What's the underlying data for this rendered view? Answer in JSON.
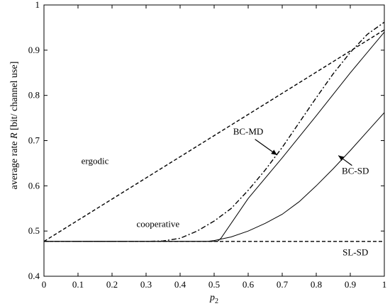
{
  "chart_data": {
    "type": "line",
    "xlabel_var": "p",
    "xlabel_sub": "2",
    "ylabel_prefix": "average rate ",
    "ylabel_var": "R",
    "ylabel_suffix": " [bit/ channel use]",
    "xlim": [
      0,
      1
    ],
    "ylim": [
      0.4,
      1
    ],
    "xticks": [
      0,
      0.1,
      0.2,
      0.3,
      0.4,
      0.5,
      0.6,
      0.7,
      0.8,
      0.9,
      1
    ],
    "xtick_labels": [
      "0",
      "0.1",
      "0.2",
      "0.3",
      "0.4",
      "0.5",
      "0.6",
      "0.7",
      "0.8",
      "0.9",
      "1"
    ],
    "yticks": [
      0.4,
      0.5,
      0.6,
      0.7,
      0.8,
      0.9,
      1
    ],
    "ytick_labels": [
      "0.4",
      "0.5",
      "0.6",
      "0.7",
      "0.8",
      "0.9",
      "1"
    ],
    "grid": false,
    "series": [
      {
        "name": "ergodic",
        "style": "dashed",
        "x": [
          0,
          1
        ],
        "y": [
          0.477,
          0.945
        ]
      },
      {
        "name": "cooperative",
        "style": "dashdot",
        "x": [
          0,
          0.3,
          0.35,
          0.4,
          0.45,
          0.5,
          0.55,
          0.6,
          0.65,
          0.7,
          0.75,
          0.8,
          0.85,
          0.9,
          0.95,
          1
        ],
        "y": [
          0.477,
          0.477,
          0.478,
          0.484,
          0.5,
          0.522,
          0.55,
          0.59,
          0.635,
          0.685,
          0.74,
          0.795,
          0.848,
          0.895,
          0.935,
          0.962
        ]
      },
      {
        "name": "BC-MD",
        "style": "solid",
        "x": [
          0,
          0.51,
          0.52,
          0.6,
          0.7,
          0.8,
          0.9,
          1
        ],
        "y": [
          0.477,
          0.477,
          0.484,
          0.572,
          0.662,
          0.755,
          0.85,
          0.94
        ]
      },
      {
        "name": "BC-SD",
        "style": "solid",
        "x": [
          0,
          0.48,
          0.5,
          0.55,
          0.6,
          0.65,
          0.7,
          0.75,
          0.8,
          0.85,
          0.9,
          0.95,
          1
        ],
        "y": [
          0.477,
          0.477,
          0.479,
          0.487,
          0.5,
          0.517,
          0.537,
          0.565,
          0.6,
          0.638,
          0.678,
          0.72,
          0.762
        ]
      },
      {
        "name": "SL-SD",
        "style": "dashed",
        "x": [
          0,
          1
        ],
        "y": [
          0.477,
          0.477
        ]
      }
    ],
    "annotations": [
      {
        "text": "ergodic",
        "x": 0.15,
        "y": 0.648
      },
      {
        "text": "cooperative",
        "x": 0.335,
        "y": 0.509
      },
      {
        "text": "BC-MD",
        "x": 0.6,
        "y": 0.713
      },
      {
        "text": "BC-SD",
        "x": 0.915,
        "y": 0.626
      },
      {
        "text": "SL-SD",
        "x": 0.915,
        "y": 0.446
      }
    ]
  }
}
